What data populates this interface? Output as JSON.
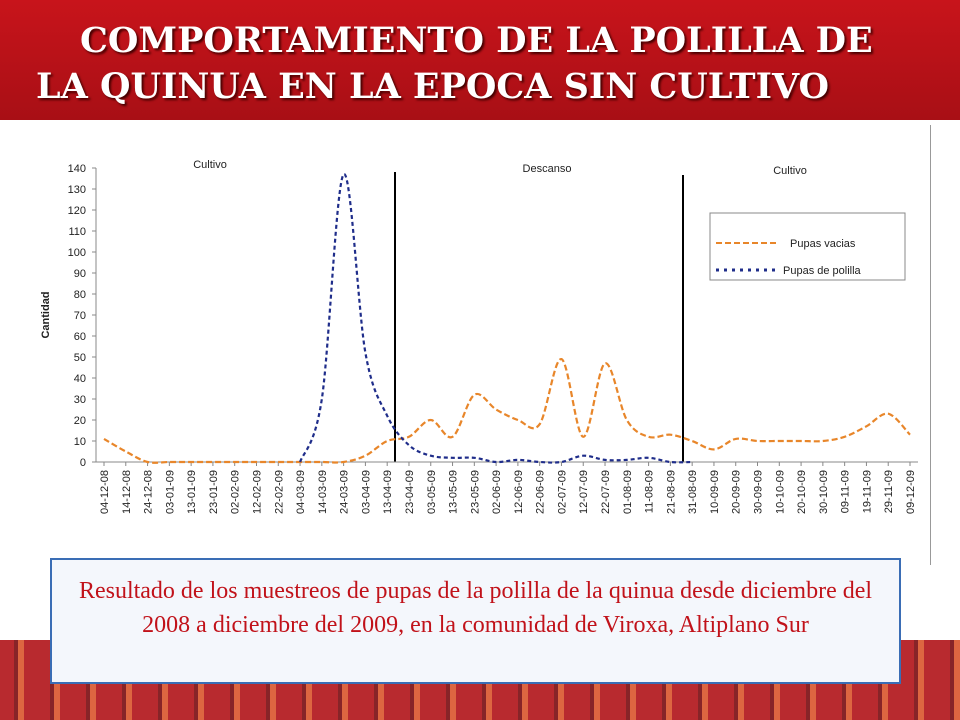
{
  "slide": {
    "title": [
      "COMPORTAMIENTO DE LA POLILLA DE",
      "LA QUINUA EN LA EPOCA SIN CULTIVO"
    ],
    "caption": "Resultado de los muestreos de pupas de la polilla de la quinua desde diciembre del 2008 a diciembre del 2009, en la comunidad de Viroxa, Altiplano Sur"
  },
  "chart_data": {
    "type": "line",
    "y_label": "Cantidad",
    "annotations": [
      "Cultivo",
      "Descanso",
      "Cultivo"
    ],
    "categories": [
      "04-12-08",
      "14-12-08",
      "24-12-08",
      "03-01-09",
      "13-01-09",
      "23-01-09",
      "02-02-09",
      "12-02-09",
      "22-02-09",
      "04-03-09",
      "14-03-09",
      "24-03-09",
      "03-04-09",
      "13-04-09",
      "23-04-09",
      "03-05-09",
      "13-05-09",
      "23-05-09",
      "02-06-09",
      "12-06-09",
      "22-06-09",
      "02-07-09",
      "12-07-09",
      "22-07-09",
      "01-08-09",
      "11-08-09",
      "21-08-09",
      "31-08-09",
      "10-09-09",
      "20-09-09",
      "30-09-09",
      "10-10-09",
      "20-10-09",
      "30-10-09",
      "09-11-09",
      "19-11-09",
      "29-11-09",
      "09-12-09"
    ],
    "series": [
      {
        "name": "Pupas vacias",
        "color": "#e8862a",
        "values": [
          11,
          5,
          0,
          0,
          0,
          0,
          0,
          0,
          0,
          0,
          0,
          0,
          3,
          10,
          12,
          20,
          12,
          32,
          25,
          20,
          18,
          49,
          12,
          47,
          20,
          12,
          13,
          10,
          6,
          11,
          10,
          10,
          10,
          10,
          12,
          17,
          23,
          13
        ]
      },
      {
        "name": "Pupas de polilla",
        "color": "#1f2d8a",
        "values": [
          null,
          null,
          null,
          null,
          null,
          null,
          null,
          null,
          null,
          0,
          30,
          137,
          52,
          22,
          8,
          3,
          2,
          2,
          0,
          1,
          0,
          0,
          3,
          1,
          1,
          2,
          0,
          0,
          null,
          null,
          null,
          null,
          null,
          null,
          null,
          null,
          null,
          null
        ]
      }
    ],
    "ylim": [
      0,
      140
    ],
    "yticks": [
      0,
      10,
      20,
      30,
      40,
      50,
      60,
      70,
      80,
      90,
      100,
      110,
      120,
      130,
      140
    ],
    "legend": "upper right"
  }
}
